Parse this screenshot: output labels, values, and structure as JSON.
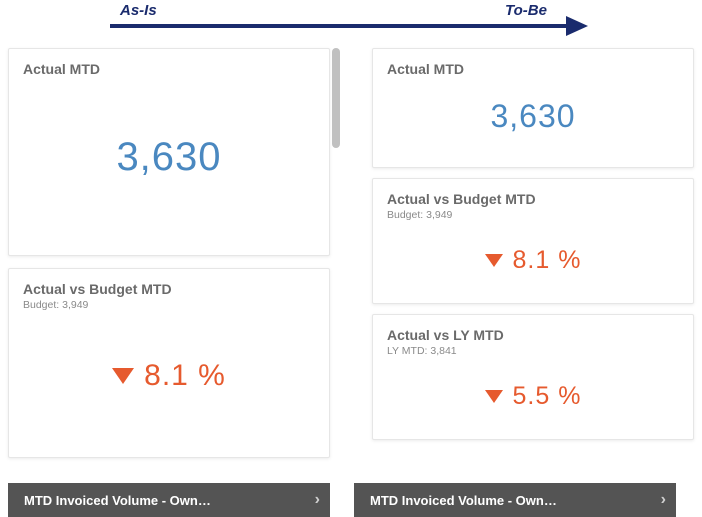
{
  "header": {
    "asis_label": "As-Is",
    "tobe_label": "To-Be",
    "arrow_color": "#1a2b6d"
  },
  "left": {
    "actual_card": {
      "title": "Actual MTD",
      "value": "3,630",
      "value_color": "#4a88c0"
    },
    "budget_card": {
      "title": "Actual vs Budget MTD",
      "subtitle": "Budget: 3,949",
      "value": "8.1 %",
      "value_color": "#e65a2e",
      "direction": "down"
    },
    "footer": {
      "label": "MTD Invoiced Volume - Own…"
    }
  },
  "right": {
    "actual_card": {
      "title": "Actual MTD",
      "value": "3,630",
      "value_color": "#4a88c0"
    },
    "budget_card": {
      "title": "Actual vs Budget MTD",
      "subtitle": "Budget: 3,949",
      "value": "8.1 %",
      "value_color": "#e65a2e",
      "direction": "down"
    },
    "ly_card": {
      "title": "Actual vs LY MTD",
      "subtitle": "LY MTD: 3,841",
      "value": "5.5 %",
      "value_color": "#e65a2e",
      "direction": "down"
    },
    "footer": {
      "label": "MTD Invoiced Volume - Own…"
    }
  },
  "styles": {
    "card_border_color": "#e6e6e6",
    "card_title_color": "#6a6a6a",
    "card_subtitle_color": "#8a8a8a",
    "footer_bg": "#545454",
    "footer_text": "#ffffff",
    "down_triangle_color": "#e65a2e",
    "scrollbar_color": "#c0c0c0"
  }
}
